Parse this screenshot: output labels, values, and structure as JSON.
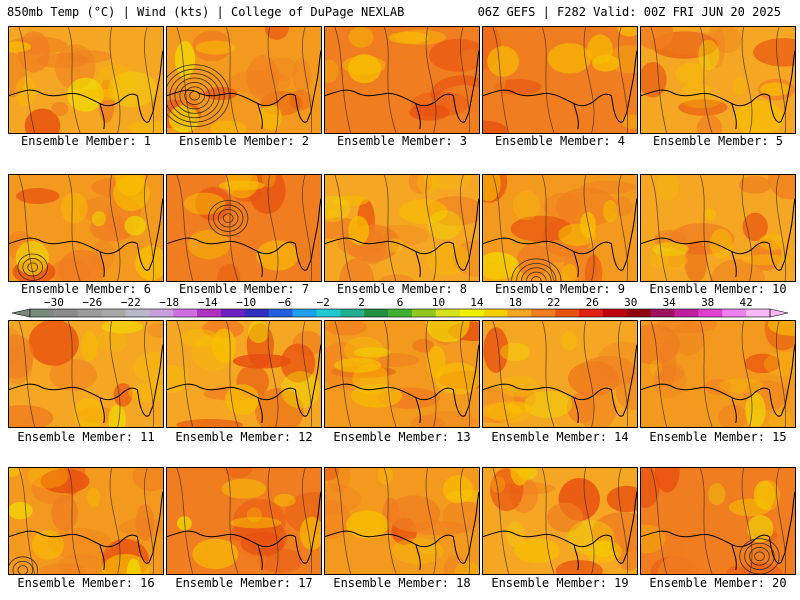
{
  "header": {
    "left": "850mb Temp (°C) | Wind (kts) | College of DuPage NEXLAB",
    "right": "06Z GEFS | F282 Valid: 00Z FRI JUN 20 2025"
  },
  "members": [
    {
      "label": "Ensemble Member: 1",
      "base": "#f5a623",
      "hot": 0.25,
      "cool": 0.3,
      "cyclone": null
    },
    {
      "label": "Ensemble Member: 2",
      "base": "#f39a1e",
      "hot": 0.45,
      "cool": 0.2,
      "cyclone": "strong"
    },
    {
      "label": "Ensemble Member: 3",
      "base": "#f07e20",
      "hot": 0.65,
      "cool": 0.2,
      "cyclone": null
    },
    {
      "label": "Ensemble Member: 4",
      "base": "#f07e20",
      "hot": 0.6,
      "cool": 0.25,
      "cyclone": null
    },
    {
      "label": "Ensemble Member: 5",
      "base": "#f5a623",
      "hot": 0.35,
      "cool": 0.3,
      "cyclone": null
    },
    {
      "label": "Ensemble Member: 6",
      "base": "#f39a1e",
      "hot": 0.4,
      "cool": 0.3,
      "cyclone": "weak"
    },
    {
      "label": "Ensemble Member: 7",
      "base": "#f07e20",
      "hot": 0.7,
      "cool": 0.2,
      "cyclone": "medium"
    },
    {
      "label": "Ensemble Member: 8",
      "base": "#f5a623",
      "hot": 0.55,
      "cool": 0.6,
      "cyclone": null
    },
    {
      "label": "Ensemble Member: 9",
      "base": "#f39a1e",
      "hot": 0.5,
      "cool": 0.4,
      "cyclone": "bottom"
    },
    {
      "label": "Ensemble Member: 10",
      "base": "#f5a623",
      "hot": 0.3,
      "cool": 0.25,
      "cyclone": null
    },
    {
      "label": "Ensemble Member: 11",
      "base": "#f5a623",
      "hot": 0.3,
      "cool": 0.3,
      "cyclone": null
    },
    {
      "label": "Ensemble Member: 12",
      "base": "#f5a623",
      "hot": 0.25,
      "cool": 0.3,
      "cyclone": null
    },
    {
      "label": "Ensemble Member: 13",
      "base": "#f39a1e",
      "hot": 0.45,
      "cool": 0.35,
      "cyclone": null
    },
    {
      "label": "Ensemble Member: 14",
      "base": "#f5a623",
      "hot": 0.4,
      "cool": 0.3,
      "cyclone": null
    },
    {
      "label": "Ensemble Member: 15",
      "base": "#f39a1e",
      "hot": 0.45,
      "cool": 0.2,
      "cyclone": null
    },
    {
      "label": "Ensemble Member: 16",
      "base": "#f39a1e",
      "hot": 0.45,
      "cool": 0.25,
      "cyclone": "corner"
    },
    {
      "label": "Ensemble Member: 17",
      "base": "#f07e20",
      "hot": 0.6,
      "cool": 0.3,
      "cyclone": null
    },
    {
      "label": "Ensemble Member: 18",
      "base": "#f39a1e",
      "hot": 0.35,
      "cool": 0.3,
      "cyclone": null
    },
    {
      "label": "Ensemble Member: 19",
      "base": "#f5a623",
      "hot": 0.25,
      "cool": 0.35,
      "cyclone": null
    },
    {
      "label": "Ensemble Member: 20",
      "base": "#f07e20",
      "hot": 0.75,
      "cool": 0.15,
      "cyclone": "right"
    }
  ],
  "colorbar": {
    "ticks": [
      "−30",
      "−26",
      "−22",
      "−18",
      "−14",
      "−10",
      "−6",
      "−2",
      "2",
      "6",
      "10",
      "14",
      "18",
      "22",
      "26",
      "30",
      "34",
      "38",
      "42"
    ],
    "colors": [
      "#7a8a7a",
      "#8c8c8c",
      "#9c9c9c",
      "#a8a8a8",
      "#b8b8c8",
      "#c9a0dc",
      "#d070e0",
      "#b030c0",
      "#7020c0",
      "#3030c0",
      "#2060e0",
      "#20a0f0",
      "#20c8d0",
      "#20b090",
      "#209040",
      "#40b030",
      "#90c820",
      "#d8e020",
      "#f0f000",
      "#f8d000",
      "#f5a623",
      "#f07e20",
      "#e85010",
      "#e02010",
      "#c00010",
      "#900010",
      "#a01060",
      "#c020a0",
      "#e040d0",
      "#f080f0",
      "#f8b8f8"
    ]
  }
}
